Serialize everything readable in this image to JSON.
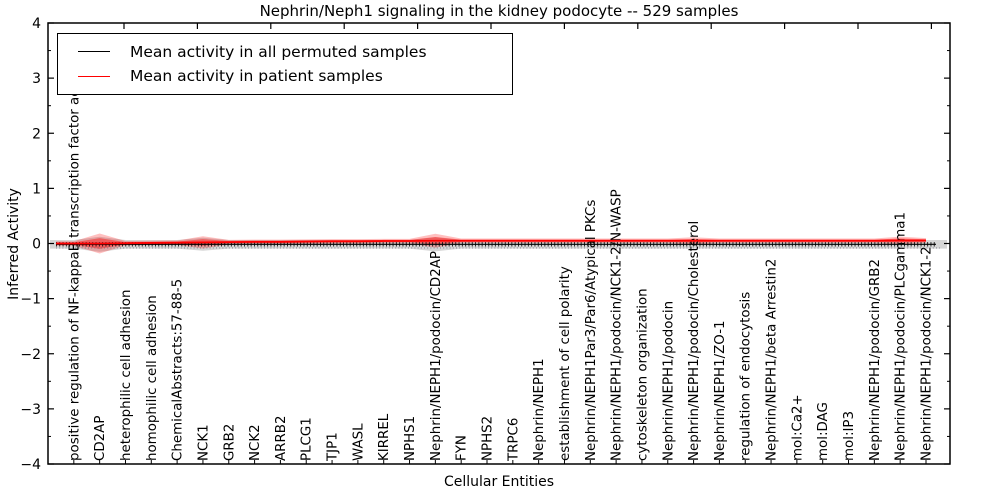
{
  "title": "Nephrin/Neph1 signaling in the kidney podocyte -- 529 samples",
  "chart_data": {
    "type": "line",
    "title": "Nephrin/Neph1 signaling in the kidney podocyte -- 529 samples",
    "xlabel": "Cellular Entities",
    "ylabel": "Inferred Activity",
    "ylim": [
      -4,
      4
    ],
    "yticks": [
      4,
      3,
      2,
      1,
      0,
      -1,
      -2,
      -3,
      -4
    ],
    "grid": false,
    "legend_position": "upper left",
    "categories": [
      "positive regulation of NF-kappaB transcription factor activity",
      "CD2AP",
      "heterophilic cell adhesion",
      "homophilic cell adhesion",
      "ChemicalAbstracts:57-88-5",
      "NCK1",
      "GRB2",
      "NCK2",
      "ARRB2",
      "PLCG1",
      "TJP1",
      "WASL",
      "KIRREL",
      "NPHS1",
      "Nephrin/NEPH1/podocin/CD2AP",
      "FYN",
      "NPHS2",
      "TRPC6",
      "Nephrin/NEPH1",
      "establishment of cell polarity",
      "Nephrin/NEPH1Par3/Par6/Atypical PKCs",
      "Nephrin/NEPH1/podocin/NCK1-2/N-WASP",
      "cytoskeleton organization",
      "Nephrin/NEPH1/podocin",
      "Nephrin/NEPH1/podocin/Cholesterol",
      "Nephrin/NEPH1/ZO-1",
      "regulation of endocytosis",
      "Nephrin/NEPH1/beta Arrestin2",
      "mol:Ca2+",
      "mol:DAG",
      "mol:IP3",
      "Nephrin/NEPH1/podocin/GRB2",
      "Nephrin/NEPH1/podocin/PLCgamma1",
      "Nephrin/NEPH1/podocin/NCK1-2"
    ],
    "series": [
      {
        "name": "Mean activity in all permuted samples",
        "color": "#000000",
        "values": [
          0,
          0,
          0,
          0,
          0,
          0,
          0,
          0,
          0,
          0,
          0,
          0,
          0,
          0,
          0,
          0,
          0,
          0,
          0,
          0,
          0,
          0,
          0,
          0,
          0,
          0,
          0,
          0,
          0,
          0,
          0,
          0,
          0,
          0
        ],
        "band_halfwidth": 0.078,
        "band_bulges": {
          "1": 0.06,
          "5": 0.04,
          "14": 0.05
        }
      },
      {
        "name": "Mean activity in patient samples",
        "color": "#ff0000",
        "values": [
          0.0,
          0.0,
          0.005,
          0.01,
          0.015,
          0.02,
          0.025,
          0.03,
          0.03,
          0.035,
          0.04,
          0.04,
          0.045,
          0.045,
          0.05,
          0.05,
          0.05,
          0.05,
          0.05,
          0.05,
          0.05,
          0.05,
          0.05,
          0.05,
          0.05,
          0.05,
          0.05,
          0.05,
          0.05,
          0.05,
          0.05,
          0.05,
          0.055,
          0.055
        ],
        "spread": [
          0.015,
          0.13,
          0.02,
          0.015,
          0.015,
          0.08,
          0.02,
          0.015,
          0.015,
          0.015,
          0.015,
          0.015,
          0.015,
          0.02,
          0.09,
          0.02,
          0.015,
          0.015,
          0.015,
          0.015,
          0.015,
          0.02,
          0.02,
          0.015,
          0.045,
          0.02,
          0.015,
          0.015,
          0.015,
          0.015,
          0.015,
          0.015,
          0.05,
          0.03
        ]
      }
    ]
  },
  "colors": {
    "frame": "#000000",
    "patient_line": "#ff0000",
    "permuted_line": "#000000",
    "patient_band": "rgba(255,0,0,0.25)",
    "patient_band_core": "rgba(255,0,0,0.42)",
    "permuted_band": "rgba(0,0,0,0.16)"
  }
}
